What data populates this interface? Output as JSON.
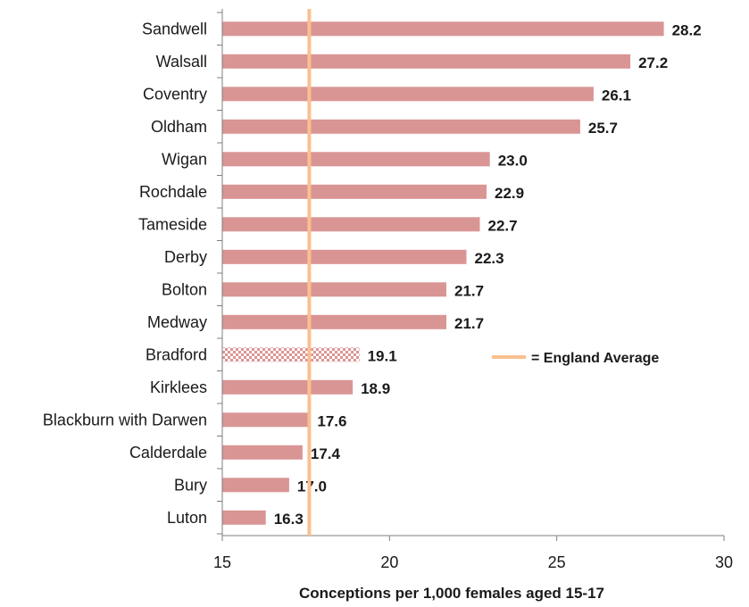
{
  "chart_data": {
    "type": "bar",
    "orientation": "horizontal",
    "categories": [
      "Sandwell",
      "Walsall",
      "Coventry",
      "Oldham",
      "Wigan",
      "Rochdale",
      "Tameside",
      "Derby",
      "Bolton",
      "Medway",
      "Bradford",
      "Kirklees",
      "Blackburn with Darwen",
      "Calderdale",
      "Bury",
      "Luton"
    ],
    "values": [
      28.2,
      27.2,
      26.1,
      25.7,
      23.0,
      22.9,
      22.7,
      22.3,
      21.7,
      21.7,
      19.1,
      18.9,
      17.6,
      17.4,
      17.0,
      16.3
    ],
    "value_labels": [
      "28.2",
      "27.2",
      "26.1",
      "25.7",
      "23.0",
      "22.9",
      "22.7",
      "22.3",
      "21.7",
      "21.7",
      "19.1",
      "18.9",
      "17.6",
      "17.4",
      "17.0",
      "16.3"
    ],
    "highlighted_category": "Bradford",
    "xlabel": "Conceptions  per 1,000 females aged 15-17",
    "xlim": [
      15,
      30
    ],
    "xticks": [
      "15",
      "20",
      "25",
      "30"
    ],
    "reference_line": {
      "value": 17.6,
      "label": "= England Average"
    },
    "legend_position": "right-middle",
    "grid": false,
    "colors": {
      "bar": "#d99594",
      "highlight_pattern": "#d99594",
      "reference_line": "#fac090",
      "axis": "#7f7f7f"
    }
  }
}
